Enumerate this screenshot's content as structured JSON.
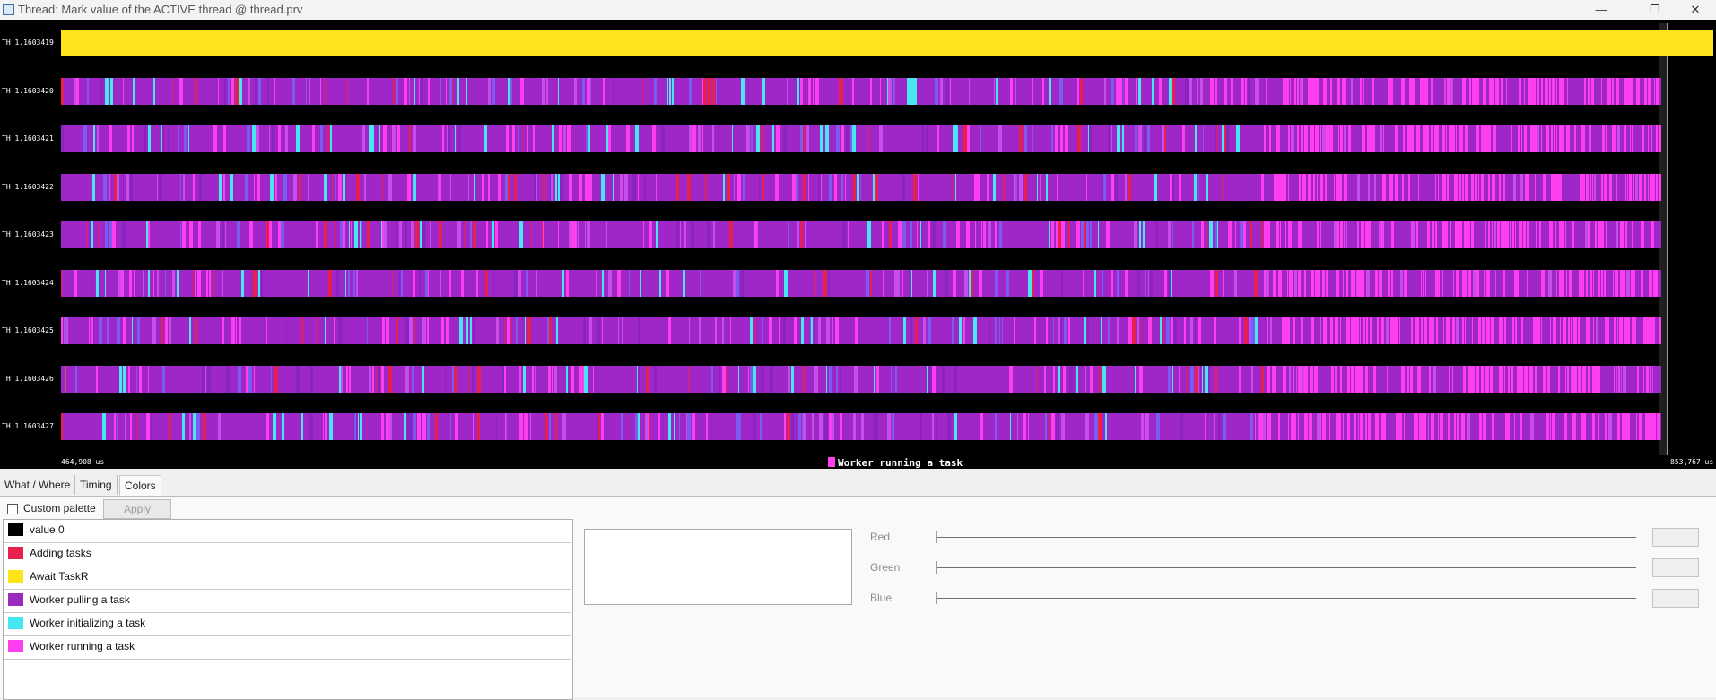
{
  "window": {
    "title": "Thread: Mark value of the ACTIVE thread @ thread.prv",
    "minimize_icon": "minimize-icon",
    "maximize_icon": "restore-icon",
    "close_icon": "close-icon"
  },
  "timeline": {
    "rows": [
      {
        "label": "TH 1.1603419",
        "style": "yellow"
      },
      {
        "label": "TH 1.1603420",
        "style": "purple"
      },
      {
        "label": "TH 1.1603421",
        "style": "purple"
      },
      {
        "label": "TH 1.1603422",
        "style": "purple"
      },
      {
        "label": "TH 1.1603423",
        "style": "purple"
      },
      {
        "label": "TH 1.1603424",
        "style": "purple"
      },
      {
        "label": "TH 1.1603425",
        "style": "purple"
      },
      {
        "label": "TH 1.1603426",
        "style": "purple"
      },
      {
        "label": "TH 1.1603427",
        "style": "purple"
      }
    ],
    "start_time": "464,908 us",
    "end_time": "853,767 us",
    "legend_label": "Worker running a task",
    "legend_color": "#ff3ef0"
  },
  "tabs": [
    {
      "label": "What / Where",
      "active": false
    },
    {
      "label": "Timing",
      "active": false
    },
    {
      "label": "Colors",
      "active": true
    }
  ],
  "colors_panel": {
    "custom_palette_label": "Custom palette",
    "custom_palette_checked": false,
    "apply_label": "Apply",
    "items": [
      {
        "label": "value 0",
        "color": "#000000"
      },
      {
        "label": "Adding tasks",
        "color": "#e8204c"
      },
      {
        "label": "Await TaskR",
        "color": "#ffe41c"
      },
      {
        "label": "Worker pulling a task",
        "color": "#9a2bbd"
      },
      {
        "label": "Worker initializing a task",
        "color": "#46e7f0"
      },
      {
        "label": "Worker running a task",
        "color": "#ff3ef0"
      }
    ],
    "rgb": {
      "red_label": "Red",
      "green_label": "Green",
      "blue_label": "Blue",
      "red_value": 0,
      "green_value": 0,
      "blue_value": 0
    }
  }
}
